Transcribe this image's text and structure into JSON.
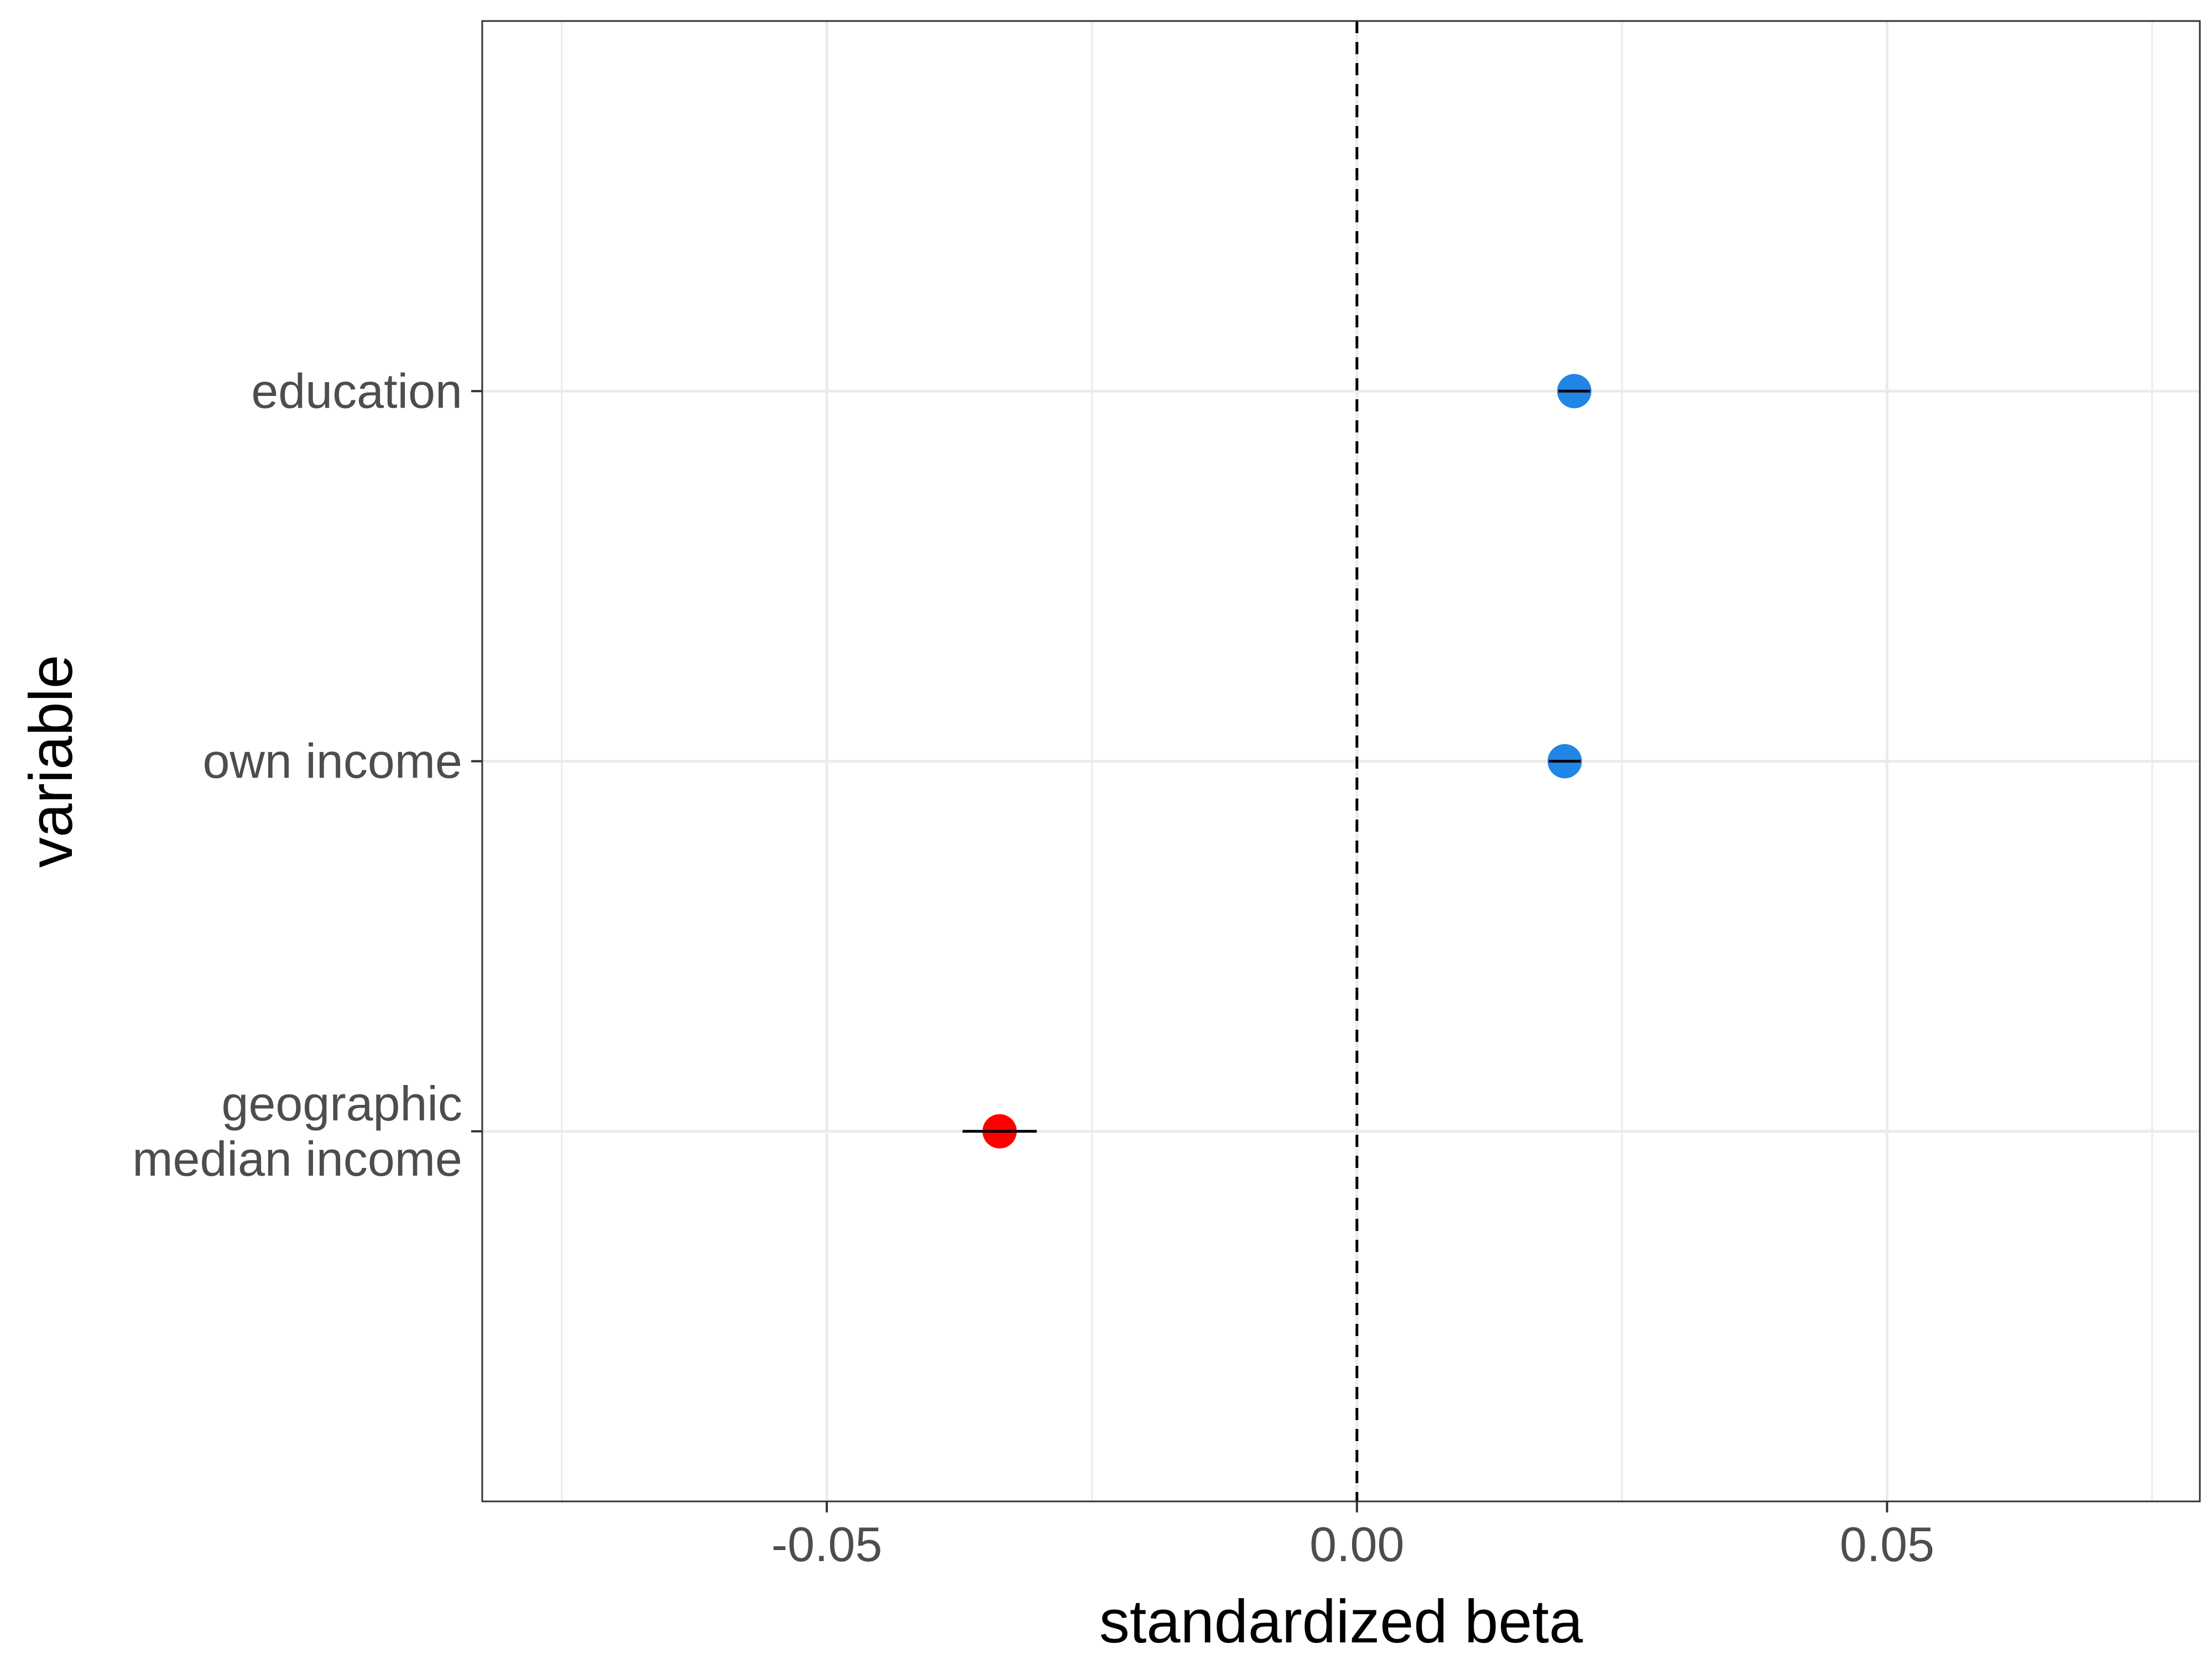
{
  "chart_data": {
    "type": "scatter",
    "title": "",
    "xlabel": "standardized beta",
    "ylabel": "variable",
    "xlim": [
      -0.0825,
      0.0795
    ],
    "x_ticks": [
      -0.05,
      0.0,
      0.05
    ],
    "x_tick_labels": [
      "-0.05",
      "0.00",
      "0.05"
    ],
    "grid": true,
    "reference_line": {
      "x": 0,
      "style": "dashed"
    },
    "categories": [
      {
        "label_lines": [
          "education"
        ]
      },
      {
        "label_lines": [
          "own income"
        ]
      },
      {
        "label_lines": [
          "geographic",
          "median income"
        ]
      }
    ],
    "points": [
      {
        "category_index": 0,
        "x": 0.0205,
        "ci_low": 0.019,
        "ci_high": 0.022,
        "color": "#2185e6"
      },
      {
        "category_index": 1,
        "x": 0.0196,
        "ci_low": 0.0181,
        "ci_high": 0.0211,
        "color": "#2185e6"
      },
      {
        "category_index": 2,
        "x": -0.0337,
        "ci_low": -0.0372,
        "ci_high": -0.0302,
        "color": "#ff0000"
      }
    ],
    "colors": {
      "positive": "#2185e6",
      "negative": "#ff0000",
      "grid": "#ebebeb",
      "border": "#333333"
    }
  }
}
